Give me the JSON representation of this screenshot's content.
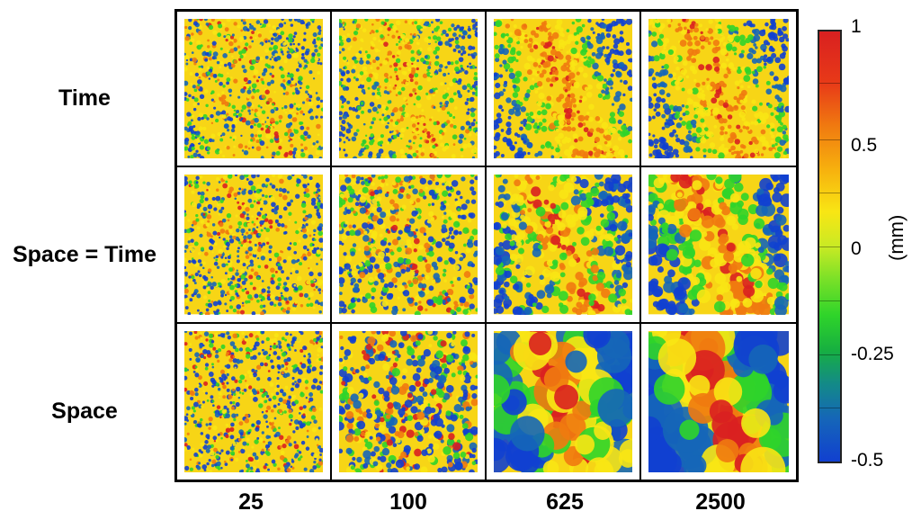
{
  "row_labels": [
    "Time",
    "Space = Time",
    "Space"
  ],
  "column_labels": [
    "25",
    "100",
    "625",
    "2500"
  ],
  "colorbar": {
    "ticks": [
      "1",
      "0.5",
      "0",
      "-0.25",
      "-0.5"
    ],
    "unit": "(mm)",
    "colors": [
      "#d92020",
      "#f07a10",
      "#f8e614",
      "#2fd42a",
      "#1566b8",
      "#1140d0"
    ]
  },
  "panels": {
    "noise_levels": [
      [
        0.65,
        0.45,
        0.2,
        0.2
      ],
      [
        0.75,
        0.65,
        0.4,
        0.25
      ],
      [
        0.9,
        0.85,
        0.35,
        0.2
      ]
    ],
    "blob_sizes": [
      [
        3,
        3,
        4,
        4
      ],
      [
        3,
        4,
        6,
        8
      ],
      [
        3,
        5,
        22,
        26
      ]
    ]
  }
}
